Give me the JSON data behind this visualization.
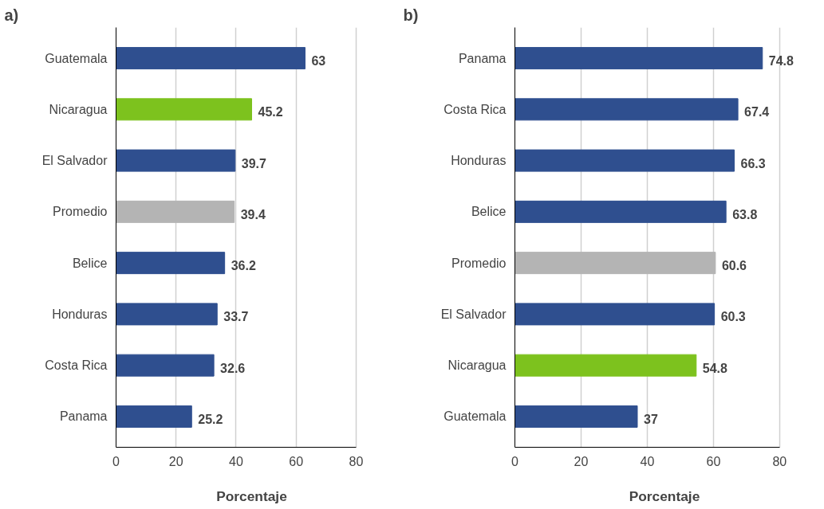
{
  "chart_data": [
    {
      "type": "bar",
      "title": "a)",
      "orientation": "horizontal",
      "xlabel": "Porcentaje",
      "categories": [
        "Guatemala",
        "Nicaragua",
        "El Salvador",
        "Promedio",
        "Belice",
        "Honduras",
        "Costa Rica",
        "Panama"
      ],
      "values": [
        63,
        45.2,
        39.7,
        39.4,
        36.2,
        33.7,
        32.6,
        25.2
      ],
      "colors": [
        "#2f4f8f",
        "#7dc21e",
        "#2f4f8f",
        "#b4b4b4",
        "#2f4f8f",
        "#2f4f8f",
        "#2f4f8f",
        "#2f4f8f"
      ],
      "xlim": [
        0,
        80
      ],
      "xticks": [
        0,
        20,
        40,
        60,
        80
      ],
      "grid": "x",
      "data_labels": true
    },
    {
      "type": "bar",
      "title": "b)",
      "orientation": "horizontal",
      "xlabel": "Porcentaje",
      "categories": [
        "Panama",
        "Costa Rica",
        "Honduras",
        "Belice",
        "Promedio",
        "El Salvador",
        "Nicaragua",
        "Guatemala"
      ],
      "values": [
        74.8,
        67.4,
        66.3,
        63.8,
        60.6,
        60.3,
        54.8,
        37
      ],
      "colors": [
        "#2f4f8f",
        "#2f4f8f",
        "#2f4f8f",
        "#2f4f8f",
        "#b4b4b4",
        "#2f4f8f",
        "#7dc21e",
        "#2f4f8f"
      ],
      "xlim": [
        0,
        80
      ],
      "xticks": [
        0,
        20,
        40,
        60,
        80
      ],
      "grid": "x",
      "data_labels": true
    }
  ]
}
